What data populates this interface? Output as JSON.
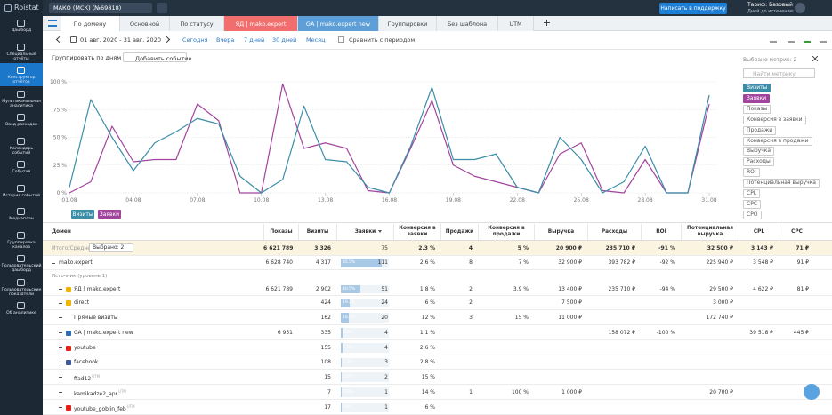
{
  "topbar": {
    "project": "МАКО (МСК) (№69818)",
    "support_button": "Написать в поддержку",
    "tariff": "Тариф: Базовый",
    "days_left": "Дней до истечения: 14"
  },
  "sidebar": {
    "logo": "Roistat",
    "items": [
      "Дашборд",
      "Специальные отчёты",
      "Конструктор отчётов",
      "Мультиканальная аналитика",
      "Ввод расходов",
      "Календарь событий",
      "События",
      "История событий",
      "Медиаплан",
      "Группировка каналов",
      "Пользовательский дашборд",
      "Пользовательские показатели",
      "Об аналитике"
    ]
  },
  "tabs": [
    "По домену",
    "Основной",
    "По статусу",
    "ЯД | mako.expert",
    "GA | mako.expert new",
    "Группировки",
    "Без шаблона",
    "UTM"
  ],
  "date_bar": {
    "range": "01 авг. 2020 - 31 авг. 2020",
    "presets": [
      "Сегодня",
      "Вчера",
      "7 дней",
      "30 дней",
      "Месяц"
    ],
    "compare": "Сравнить с периодом"
  },
  "toolbar": {
    "group_by": "Группировать по дням",
    "add_event": "Добавить событие"
  },
  "metrics_panel": {
    "selected": "Выбрано метрик: 2",
    "search_placeholder": "Найти метрику",
    "metrics": [
      "Визиты",
      "Заявки",
      "Показы",
      "Конверсия в заявки",
      "Продажи",
      "Конверсия в продажи",
      "Выручка",
      "Расходы",
      "ROI",
      "Потенциальная выручка",
      "CPL",
      "CPC",
      "CPO"
    ]
  },
  "chart_data": {
    "type": "line",
    "x": [
      "01.08",
      null,
      null,
      "04.08",
      null,
      null,
      "07.08",
      null,
      null,
      "10.08",
      null,
      null,
      "13.08",
      null,
      null,
      "16.08",
      null,
      null,
      "19.08",
      null,
      null,
      "22.08",
      null,
      null,
      "25.08",
      null,
      null,
      "28.08",
      null,
      null,
      "31.08"
    ],
    "ylim": [
      0,
      100
    ],
    "yticks": [
      {
        "value": 0,
        "label": "0 %"
      },
      {
        "value": 25,
        "label": "25 %"
      },
      {
        "value": 50,
        "label": "50 %"
      },
      {
        "value": 75,
        "label": "75 %"
      },
      {
        "value": 100,
        "label": "100 %"
      }
    ],
    "grid": true,
    "series": [
      {
        "name": "Визиты",
        "color": "#3b8ea8",
        "values": [
          5,
          84,
          50,
          20,
          45,
          55,
          67,
          62,
          15,
          0,
          12,
          78,
          30,
          28,
          5,
          0,
          42,
          95,
          30,
          30,
          35,
          5,
          0,
          50,
          30,
          0,
          10,
          42,
          0,
          0,
          88
        ]
      },
      {
        "name": "Заявки",
        "color": "#a2449e",
        "values": [
          0,
          10,
          60,
          28,
          30,
          30,
          80,
          65,
          0,
          0,
          98,
          40,
          45,
          40,
          2,
          0,
          40,
          83,
          25,
          15,
          10,
          5,
          0,
          35,
          45,
          2,
          0,
          30,
          0,
          0,
          80
        ]
      }
    ]
  },
  "table": {
    "columns": [
      "Домен",
      "Показы",
      "Визиты",
      "Заявки",
      "Конверсия в заявки",
      "Продажи",
      "Конверсия в продажи",
      "Выручка",
      "Расходы",
      "ROI",
      "Потенциальная выручка",
      "CPL",
      "CPC"
    ],
    "section": "Источник (уровень 1)",
    "rows": [
      {
        "name": "Итого/Среднее",
        "selected": "Выбрано: 2",
        "cells": [
          "6 621 789",
          "3 326",
          {
            "text": "75"
          },
          "2.3 %",
          "4",
          "5 %",
          "20 900 ₽",
          "235 710 ₽",
          "-91 %",
          "32 500 ₽",
          "3 143 ₽",
          "71 ₽"
        ]
      },
      {
        "name": "mako.expert",
        "cells": [
          "6 628 740",
          "4 317",
          {
            "text": "111",
            "share": {
              "value": 85.5,
              "label": "85.5%"
            }
          },
          "2.6 %",
          "8",
          "7 %",
          "32 900 ₽",
          "393 782 ₽",
          "-92 %",
          "225 940 ₽",
          "3 548 ₽",
          "91 ₽"
        ]
      },
      {
        "name": "ЯД | mako.expert",
        "icon": "#f0b400",
        "cells": [
          "6 621 789",
          "2 902",
          {
            "text": "51",
            "share": {
              "value": 40.5,
              "label": "40.5%"
            }
          },
          "1.8 %",
          "2",
          "3.9 %",
          "13 400 ₽",
          "235 710 ₽",
          "-94 %",
          "29 500 ₽",
          "4 622 ₽",
          "81 ₽"
        ]
      },
      {
        "name": "direct",
        "icon": "#f0b400",
        "cells": [
          null,
          "424",
          {
            "text": "24",
            "share": {
              "value": 19.2,
              "label": "19.2%"
            }
          },
          "6 %",
          "2",
          null,
          "7 500 ₽",
          null,
          null,
          "3 000 ₽",
          null,
          null
        ]
      },
      {
        "name": "Прямые визиты",
        "cells": [
          null,
          "162",
          {
            "text": "20",
            "share": {
              "value": 16,
              "label": "16.0%"
            }
          },
          "12 %",
          "3",
          "15 %",
          "11 000 ₽",
          null,
          null,
          "172 740 ₽",
          null,
          null
        ]
      },
      {
        "name": "GA | mako.expert new",
        "icon": "#2e6db4",
        "cells": [
          "6 951",
          "335",
          {
            "text": "4",
            "share": {
              "value": 3.2,
              "label": "3.2%"
            }
          },
          "1.1 %",
          null,
          null,
          null,
          "158 072 ₽",
          "-100 %",
          null,
          "39 518 ₽",
          "445 ₽"
        ]
      },
      {
        "name": "youtube",
        "icon": "#e62117",
        "cells": [
          null,
          "155",
          {
            "text": "4",
            "share": {
              "value": 3.2,
              "label": "3.2%"
            }
          },
          "2.6 %",
          null,
          null,
          null,
          null,
          null,
          null,
          null,
          null
        ]
      },
      {
        "name": "facebook",
        "icon": "#3b5998",
        "cells": [
          null,
          "108",
          {
            "text": "3",
            "share": {
              "value": 2.4,
              "label": "2.4%"
            }
          },
          "2.8 %",
          null,
          null,
          null,
          null,
          null,
          null,
          null,
          null
        ]
      },
      {
        "name": "ffad12",
        "badge": "UTM",
        "cells": [
          null,
          "15",
          {
            "text": "2",
            "share": {
              "value": 1.6,
              "label": "1.6%"
            }
          },
          "15 %",
          null,
          null,
          null,
          null,
          null,
          null,
          null,
          null
        ]
      },
      {
        "name": "kamikadze2_apr",
        "badge": "UTM",
        "cells": [
          null,
          "7",
          {
            "text": "1",
            "share": {
              "value": 0.8,
              "label": "0.8%"
            }
          },
          "14 %",
          "1",
          "100 %",
          "1 000 ₽",
          null,
          null,
          "20 700 ₽",
          null,
          null
        ]
      },
      {
        "name": "youtube_goblin_feb",
        "badge": "UTM",
        "icon": "#e62117",
        "cells": [
          null,
          "17",
          {
            "text": "1",
            "share": {
              "value": 0.8,
              "label": "0.8%"
            }
          },
          "6 %",
          null,
          null,
          null,
          null,
          null,
          null,
          null,
          null
        ]
      }
    ]
  }
}
